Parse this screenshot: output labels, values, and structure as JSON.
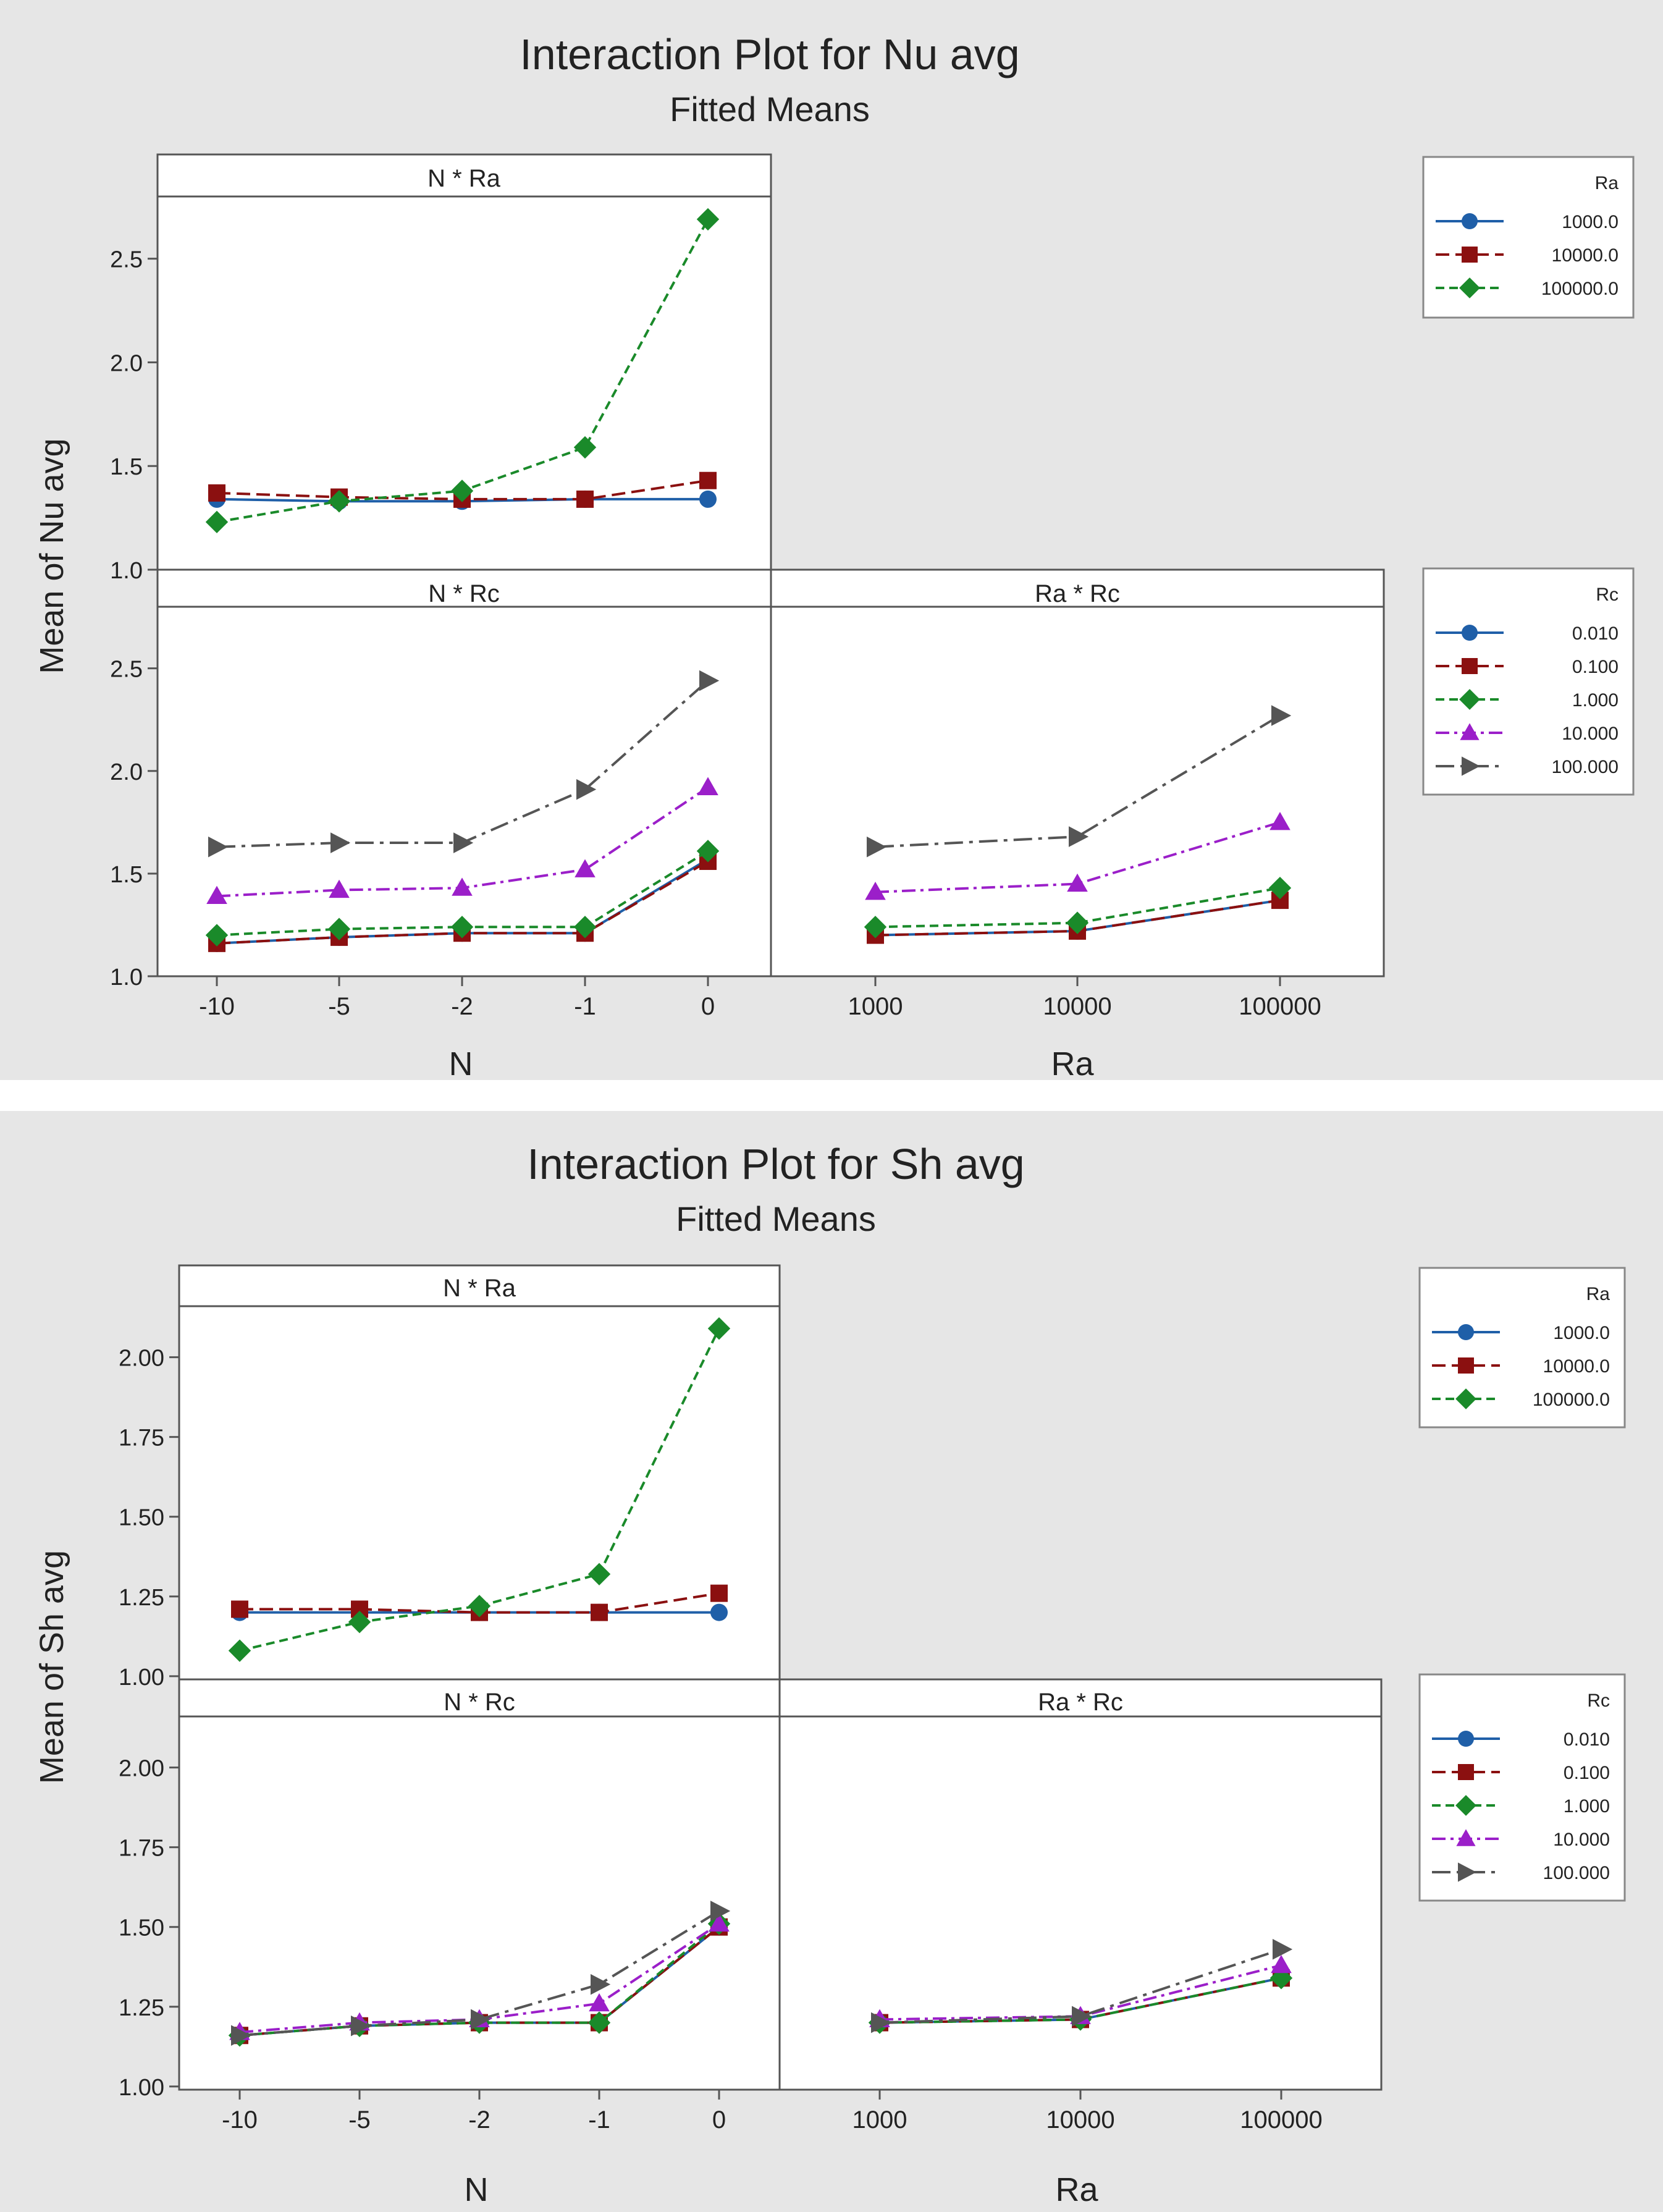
{
  "figures": [
    {
      "title": "Interaction Plot for Nu avg",
      "subtitle": "Fitted Means",
      "ylabel": "Mean of Nu avg",
      "xlabel_left": "N",
      "xlabel_right": "Ra",
      "panel_titles": {
        "top": "N * Ra",
        "bottom_left": "N * Rc",
        "bottom_right": "Ra * Rc"
      },
      "legend_top": {
        "title": "Ra",
        "entries": [
          {
            "label": "1000.0",
            "color": "#1f5fa8",
            "marker": "circle",
            "dash": "solid"
          },
          {
            "label": "10000.0",
            "color": "#8b1010",
            "marker": "square",
            "dash": "dashed"
          },
          {
            "label": "100000.0",
            "color": "#1a8a2a",
            "marker": "diamond",
            "dash": "dotted"
          }
        ]
      },
      "legend_bottom": {
        "title": "Rc",
        "entries": [
          {
            "label": "0.010",
            "color": "#1f5fa8",
            "marker": "circle",
            "dash": "solid"
          },
          {
            "label": "0.100",
            "color": "#8b1010",
            "marker": "square",
            "dash": "dashed"
          },
          {
            "label": "1.000",
            "color": "#1a8a2a",
            "marker": "diamond",
            "dash": "dotted"
          },
          {
            "label": "10.000",
            "color": "#9b1fc9",
            "marker": "triangle",
            "dash": "dashdot"
          },
          {
            "label": "100.000",
            "color": "#555555",
            "marker": "rtriangle",
            "dash": "longdash"
          }
        ]
      }
    },
    {
      "title": "Interaction Plot for Sh avg",
      "subtitle": "Fitted Means",
      "ylabel": "Mean of Sh avg",
      "xlabel_left": "N",
      "xlabel_right": "Ra",
      "panel_titles": {
        "top": "N * Ra",
        "bottom_left": "N * Rc",
        "bottom_right": "Ra * Rc"
      },
      "legend_top": {
        "title": "Ra",
        "entries": [
          {
            "label": "1000.0",
            "color": "#1f5fa8",
            "marker": "circle",
            "dash": "solid"
          },
          {
            "label": "10000.0",
            "color": "#8b1010",
            "marker": "square",
            "dash": "dashed"
          },
          {
            "label": "100000.0",
            "color": "#1a8a2a",
            "marker": "diamond",
            "dash": "dotted"
          }
        ]
      },
      "legend_bottom": {
        "title": "Rc",
        "entries": [
          {
            "label": "0.010",
            "color": "#1f5fa8",
            "marker": "circle",
            "dash": "solid"
          },
          {
            "label": "0.100",
            "color": "#8b1010",
            "marker": "square",
            "dash": "dashed"
          },
          {
            "label": "1.000",
            "color": "#1a8a2a",
            "marker": "diamond",
            "dash": "dotted"
          },
          {
            "label": "10.000",
            "color": "#9b1fc9",
            "marker": "triangle",
            "dash": "dashdot"
          },
          {
            "label": "100.000",
            "color": "#555555",
            "marker": "rtriangle",
            "dash": "longdash"
          }
        ]
      }
    }
  ],
  "chart_data": [
    {
      "type": "line",
      "title": "Interaction Plot for Nu avg",
      "subtitle": "Fitted Means",
      "ylabel": "Mean of Nu avg",
      "ylim": [
        1.0,
        2.8
      ],
      "yticks": [
        1.0,
        1.5,
        2.0,
        2.5
      ],
      "ytick_labels": [
        "1.0",
        "1.5",
        "2.0",
        "2.5"
      ],
      "panels": {
        "n_ra": {
          "title": "N * Ra",
          "categories": [
            "-10",
            "-5",
            "-2",
            "-1",
            "0"
          ],
          "legend_title": "Ra",
          "series": [
            {
              "name": "1000.0",
              "values": [
                1.34,
                1.33,
                1.33,
                1.34,
                1.34
              ]
            },
            {
              "name": "10000.0",
              "values": [
                1.37,
                1.35,
                1.34,
                1.34,
                1.43
              ]
            },
            {
              "name": "100000.0",
              "values": [
                1.23,
                1.33,
                1.38,
                1.59,
                2.69
              ]
            }
          ]
        },
        "n_rc": {
          "title": "N * Rc",
          "categories": [
            "-10",
            "-5",
            "-2",
            "-1",
            "0"
          ],
          "xlabel": "N",
          "legend_title": "Rc",
          "series": [
            {
              "name": "0.010",
              "values": [
                1.16,
                1.19,
                1.21,
                1.21,
                1.57
              ]
            },
            {
              "name": "0.100",
              "values": [
                1.16,
                1.19,
                1.21,
                1.21,
                1.56
              ]
            },
            {
              "name": "1.000",
              "values": [
                1.2,
                1.23,
                1.24,
                1.24,
                1.61
              ]
            },
            {
              "name": "10.000",
              "values": [
                1.39,
                1.42,
                1.43,
                1.52,
                1.92
              ]
            },
            {
              "name": "100.000",
              "values": [
                1.63,
                1.65,
                1.65,
                1.91,
                2.44
              ]
            }
          ]
        },
        "ra_rc": {
          "title": "Ra * Rc",
          "categories": [
            "1000",
            "10000",
            "100000"
          ],
          "xlabel": "Ra",
          "legend_title": "Rc",
          "series": [
            {
              "name": "0.010",
              "values": [
                1.2,
                1.22,
                1.37
              ]
            },
            {
              "name": "0.100",
              "values": [
                1.2,
                1.22,
                1.37
              ]
            },
            {
              "name": "1.000",
              "values": [
                1.24,
                1.26,
                1.43
              ]
            },
            {
              "name": "10.000",
              "values": [
                1.41,
                1.45,
                1.75
              ]
            },
            {
              "name": "100.000",
              "values": [
                1.63,
                1.68,
                2.27
              ]
            }
          ]
        }
      }
    },
    {
      "type": "line",
      "title": "Interaction Plot for Sh avg",
      "subtitle": "Fitted Means",
      "ylabel": "Mean of Sh avg",
      "ylim": [
        0.99,
        2.16
      ],
      "yticks": [
        1.0,
        1.25,
        1.5,
        1.75,
        2.0
      ],
      "ytick_labels": [
        "1.00",
        "1.25",
        "1.50",
        "1.75",
        "2.00"
      ],
      "panels": {
        "n_ra": {
          "title": "N * Ra",
          "categories": [
            "-10",
            "-5",
            "-2",
            "-1",
            "0"
          ],
          "legend_title": "Ra",
          "series": [
            {
              "name": "1000.0",
              "values": [
                1.2,
                1.2,
                1.2,
                1.2,
                1.2
              ]
            },
            {
              "name": "10000.0",
              "values": [
                1.21,
                1.21,
                1.2,
                1.2,
                1.26
              ]
            },
            {
              "name": "100000.0",
              "values": [
                1.08,
                1.17,
                1.22,
                1.32,
                2.09
              ]
            }
          ]
        },
        "n_rc": {
          "title": "N * Rc",
          "categories": [
            "-10",
            "-5",
            "-2",
            "-1",
            "0"
          ],
          "xlabel": "N",
          "legend_title": "Rc",
          "series": [
            {
              "name": "0.010",
              "values": [
                1.16,
                1.19,
                1.2,
                1.2,
                1.5
              ]
            },
            {
              "name": "0.100",
              "values": [
                1.16,
                1.19,
                1.2,
                1.2,
                1.5
              ]
            },
            {
              "name": "1.000",
              "values": [
                1.16,
                1.19,
                1.2,
                1.2,
                1.51
              ]
            },
            {
              "name": "10.000",
              "values": [
                1.17,
                1.2,
                1.21,
                1.26,
                1.51
              ]
            },
            {
              "name": "100.000",
              "values": [
                1.16,
                1.19,
                1.21,
                1.32,
                1.55
              ]
            }
          ]
        },
        "ra_rc": {
          "title": "Ra * Rc",
          "categories": [
            "1000",
            "10000",
            "100000"
          ],
          "xlabel": "Ra",
          "legend_title": "Rc",
          "series": [
            {
              "name": "0.010",
              "values": [
                1.2,
                1.21,
                1.34
              ]
            },
            {
              "name": "0.100",
              "values": [
                1.2,
                1.21,
                1.34
              ]
            },
            {
              "name": "1.000",
              "values": [
                1.2,
                1.21,
                1.34
              ]
            },
            {
              "name": "10.000",
              "values": [
                1.21,
                1.22,
                1.38
              ]
            },
            {
              "name": "100.000",
              "values": [
                1.2,
                1.22,
                1.43
              ]
            }
          ]
        }
      }
    }
  ]
}
